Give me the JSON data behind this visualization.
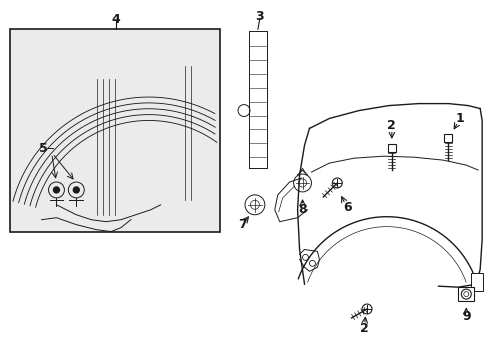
{
  "bg_color": "#ffffff",
  "box_bg": "#ebebeb",
  "line_color": "#1a1a1a",
  "label_fontsize": 9,
  "figsize": [
    4.89,
    3.6
  ],
  "dpi": 100
}
